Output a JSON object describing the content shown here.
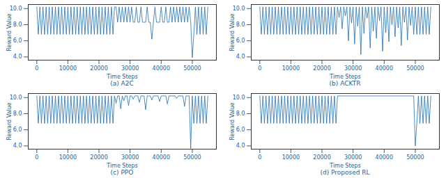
{
  "chart_data": [
    {
      "type": "line",
      "title": "(a) A2C",
      "xlabel": "Time Steps",
      "ylabel": "Reward Value",
      "color": "#1f6fb4",
      "xlim": [
        -2750,
        57750
      ],
      "xticks": [
        0,
        10000,
        20000,
        30000,
        40000,
        50000
      ],
      "ylim": [
        3.6,
        10.5
      ],
      "yticks": [
        4,
        6,
        8,
        10
      ],
      "x": [
        0,
        500,
        1000,
        1500,
        2000,
        2500,
        3000,
        3500,
        4000,
        4500,
        5000,
        5500,
        6000,
        6500,
        7000,
        7500,
        8000,
        8500,
        9000,
        9500,
        10000,
        10500,
        11000,
        11500,
        12000,
        12500,
        13000,
        13500,
        14000,
        14500,
        15000,
        15500,
        16000,
        16500,
        17000,
        17500,
        18000,
        18500,
        19000,
        19500,
        20000,
        20500,
        21000,
        21500,
        22000,
        22500,
        23000,
        23500,
        24000,
        24500,
        25000,
        25500,
        26000,
        26500,
        27000,
        27500,
        28000,
        28500,
        29000,
        29500,
        30000,
        30500,
        31000,
        31500,
        32000,
        32500,
        33000,
        33500,
        34000,
        34500,
        35000,
        35500,
        36000,
        36500,
        37000,
        37500,
        38000,
        38500,
        39000,
        39500,
        40000,
        40500,
        41000,
        41500,
        42000,
        42500,
        43000,
        43500,
        44000,
        44500,
        45000,
        45500,
        46000,
        46500,
        47000,
        47500,
        48000,
        48500,
        49000,
        49500,
        50000,
        50500,
        51000,
        51500,
        52000,
        52500,
        53000,
        53500,
        54000,
        54500,
        55000
      ],
      "values": [
        10.2,
        6.8,
        10.2,
        6.8,
        10.2,
        6.8,
        10.2,
        6.8,
        10.2,
        6.8,
        10.2,
        6.8,
        10.2,
        6.8,
        10.2,
        6.8,
        10.2,
        6.8,
        10.2,
        6.8,
        10.2,
        6.8,
        10.2,
        6.8,
        10.2,
        6.8,
        10.2,
        6.8,
        10.2,
        6.8,
        10.2,
        6.8,
        10.2,
        6.8,
        10.2,
        6.8,
        10.2,
        6.8,
        10.2,
        6.8,
        10.2,
        6.8,
        10.2,
        6.8,
        10.2,
        6.8,
        10.2,
        6.8,
        10.2,
        6.8,
        10.2,
        10.2,
        8.3,
        10.2,
        8.3,
        10.2,
        8.3,
        10.2,
        8.3,
        10.2,
        8.3,
        10.2,
        8.3,
        8.3,
        10.2,
        8.3,
        8.3,
        10.2,
        8.3,
        8.3,
        8.3,
        10.2,
        8.3,
        8.3,
        6.2,
        8.3,
        10.2,
        8.3,
        8.3,
        8.3,
        10.2,
        8.3,
        8.3,
        10.2,
        8.3,
        8.3,
        10.2,
        8.3,
        10.2,
        8.3,
        10.2,
        8.3,
        10.2,
        8.3,
        10.2,
        8.3,
        10.2,
        8.3,
        10.2,
        8.3,
        3.9,
        6.8,
        10.2,
        6.8,
        10.2,
        6.8,
        10.2,
        6.8,
        10.2,
        6.8,
        10.2
      ]
    },
    {
      "type": "line",
      "title": "(b) ACKTR",
      "xlabel": "Time Steps",
      "ylabel": "Reward Value",
      "color": "#1f6fb4",
      "xlim": [
        -2750,
        57750
      ],
      "xticks": [
        0,
        10000,
        20000,
        30000,
        40000,
        50000
      ],
      "ylim": [
        3.6,
        10.5
      ],
      "yticks": [
        4,
        6,
        8,
        10
      ],
      "x": [
        0,
        500,
        1000,
        1500,
        2000,
        2500,
        3000,
        3500,
        4000,
        4500,
        5000,
        5500,
        6000,
        6500,
        7000,
        7500,
        8000,
        8500,
        9000,
        9500,
        10000,
        10500,
        11000,
        11500,
        12000,
        12500,
        13000,
        13500,
        14000,
        14500,
        15000,
        15500,
        16000,
        16500,
        17000,
        17500,
        18000,
        18500,
        19000,
        19500,
        20000,
        20500,
        21000,
        21500,
        22000,
        22500,
        23000,
        23500,
        24000,
        24500,
        25000,
        25500,
        26000,
        26500,
        27000,
        27500,
        28000,
        28500,
        29000,
        29500,
        30000,
        30500,
        31000,
        31500,
        32000,
        32500,
        33000,
        33500,
        34000,
        34500,
        35000,
        35500,
        36000,
        36500,
        37000,
        37500,
        38000,
        38500,
        39000,
        39500,
        40000,
        40500,
        41000,
        41500,
        42000,
        42500,
        43000,
        43500,
        44000,
        44500,
        45000,
        45500,
        46000,
        46500,
        47000,
        47500,
        48000,
        48500,
        49000,
        49500,
        50000,
        50500,
        51000,
        51500,
        52000,
        52500,
        53000,
        53500,
        54000,
        54500,
        55000
      ],
      "values": [
        10.2,
        6.8,
        10.2,
        6.8,
        10.2,
        6.8,
        10.2,
        6.8,
        10.2,
        6.8,
        10.2,
        6.8,
        10.2,
        6.8,
        10.2,
        6.8,
        10.2,
        6.8,
        10.2,
        6.8,
        10.2,
        6.8,
        10.2,
        6.8,
        10.2,
        6.8,
        10.2,
        6.8,
        10.2,
        6.8,
        10.2,
        6.8,
        10.2,
        6.8,
        10.2,
        6.8,
        10.2,
        6.8,
        10.2,
        6.8,
        10.2,
        6.8,
        10.2,
        6.8,
        10.2,
        6.8,
        10.2,
        6.8,
        10.2,
        6.8,
        10.2,
        8.9,
        10.2,
        7.5,
        10.2,
        9.1,
        10.2,
        6.0,
        10.2,
        8.2,
        10.2,
        5.6,
        10.2,
        7.8,
        10.2,
        4.3,
        10.2,
        6.9,
        10.2,
        8.8,
        10.2,
        5.1,
        10.2,
        7.2,
        10.2,
        6.3,
        10.2,
        8.5,
        10.2,
        4.7,
        10.2,
        7.0,
        10.2,
        5.9,
        10.2,
        8.0,
        10.2,
        6.5,
        10.2,
        7.6,
        10.2,
        5.4,
        10.2,
        8.3,
        10.2,
        6.1,
        10.2,
        7.9,
        10.2,
        6.8,
        10.2,
        6.8,
        10.2,
        6.8,
        10.2,
        6.8,
        10.2,
        6.8,
        10.2,
        6.8,
        10.2
      ]
    },
    {
      "type": "line",
      "title": "(c) PPO",
      "xlabel": "Time Steps",
      "ylabel": "Reward Value",
      "color": "#1f6fb4",
      "xlim": [
        -2750,
        57750
      ],
      "xticks": [
        0,
        10000,
        20000,
        30000,
        40000,
        50000
      ],
      "ylim": [
        3.6,
        10.5
      ],
      "yticks": [
        4,
        6,
        8,
        10
      ],
      "x": [
        0,
        500,
        1000,
        1500,
        2000,
        2500,
        3000,
        3500,
        4000,
        4500,
        5000,
        5500,
        6000,
        6500,
        7000,
        7500,
        8000,
        8500,
        9000,
        9500,
        10000,
        10500,
        11000,
        11500,
        12000,
        12500,
        13000,
        13500,
        14000,
        14500,
        15000,
        15500,
        16000,
        16500,
        17000,
        17500,
        18000,
        18500,
        19000,
        19500,
        20000,
        20500,
        21000,
        21500,
        22000,
        22500,
        23000,
        23500,
        24000,
        24500,
        25000,
        25500,
        26000,
        26500,
        27000,
        27500,
        28000,
        28500,
        29000,
        29500,
        30000,
        30500,
        31000,
        31500,
        32000,
        32500,
        33000,
        33500,
        34000,
        34500,
        35000,
        35500,
        36000,
        36500,
        37000,
        37500,
        38000,
        38500,
        39000,
        39500,
        40000,
        40500,
        41000,
        41500,
        42000,
        42500,
        43000,
        43500,
        44000,
        44500,
        45000,
        45500,
        46000,
        46500,
        47000,
        47500,
        48000,
        48500,
        49000,
        49500,
        50000,
        50500,
        51000,
        51500,
        52000,
        52500,
        53000,
        53500,
        54000,
        54500,
        55000
      ],
      "values": [
        10.2,
        6.8,
        10.2,
        6.8,
        10.2,
        6.8,
        10.2,
        6.8,
        10.2,
        6.8,
        10.2,
        6.8,
        10.2,
        6.8,
        10.2,
        6.8,
        10.2,
        6.8,
        10.2,
        6.8,
        10.2,
        6.8,
        10.2,
        6.8,
        10.2,
        6.8,
        10.2,
        6.8,
        10.2,
        6.8,
        10.2,
        6.8,
        10.2,
        6.8,
        10.2,
        6.8,
        10.2,
        6.8,
        10.2,
        6.8,
        10.2,
        6.8,
        10.2,
        6.8,
        10.2,
        6.8,
        10.2,
        6.8,
        10.2,
        6.8,
        10.2,
        9.3,
        10.2,
        10.2,
        8.6,
        10.2,
        9.6,
        10.2,
        10.2,
        9.0,
        10.2,
        10.2,
        9.8,
        10.2,
        10.2,
        10.2,
        9.4,
        10.2,
        10.2,
        10.2,
        8.5,
        10.2,
        10.2,
        10.2,
        9.7,
        10.2,
        10.2,
        10.2,
        10.2,
        9.5,
        10.2,
        10.2,
        10.2,
        10.2,
        9.2,
        10.2,
        10.2,
        10.2,
        10.2,
        10.2,
        9.9,
        10.2,
        10.2,
        10.2,
        10.2,
        8.9,
        10.2,
        10.2,
        10.2,
        3.7,
        10.2,
        6.8,
        10.2,
        6.8,
        10.2,
        6.8,
        10.2,
        6.8,
        10.2,
        6.8,
        10.2
      ]
    },
    {
      "type": "line",
      "title": "(d) Proposed RL",
      "xlabel": "Time Steps",
      "ylabel": "Reward Value",
      "color": "#1f6fb4",
      "xlim": [
        -2750,
        57750
      ],
      "xticks": [
        0,
        10000,
        20000,
        30000,
        40000,
        50000
      ],
      "ylim": [
        3.6,
        10.5
      ],
      "yticks": [
        4,
        6,
        8,
        10
      ],
      "x": [
        0,
        500,
        1000,
        1500,
        2000,
        2500,
        3000,
        3500,
        4000,
        4500,
        5000,
        5500,
        6000,
        6500,
        7000,
        7500,
        8000,
        8500,
        9000,
        9500,
        10000,
        10500,
        11000,
        11500,
        12000,
        12500,
        13000,
        13500,
        14000,
        14500,
        15000,
        15500,
        16000,
        16500,
        17000,
        17500,
        18000,
        18500,
        19000,
        19500,
        20000,
        20500,
        21000,
        21500,
        22000,
        22500,
        23000,
        23500,
        24000,
        24500,
        25000,
        25500,
        26000,
        26500,
        27000,
        27500,
        28000,
        28500,
        29000,
        29500,
        30000,
        30500,
        31000,
        31500,
        32000,
        32500,
        33000,
        33500,
        34000,
        34500,
        35000,
        35500,
        36000,
        36500,
        37000,
        37500,
        38000,
        38500,
        39000,
        39500,
        40000,
        40500,
        41000,
        41500,
        42000,
        42500,
        43000,
        43500,
        44000,
        44500,
        45000,
        45500,
        46000,
        46500,
        47000,
        47500,
        48000,
        48500,
        49000,
        49500,
        50000,
        50500,
        51000,
        51500,
        52000,
        52500,
        53000,
        53500,
        54000,
        54500,
        55000
      ],
      "values": [
        10.2,
        6.8,
        10.2,
        6.8,
        10.2,
        6.8,
        10.2,
        6.8,
        10.2,
        6.8,
        10.2,
        6.8,
        10.2,
        6.8,
        10.2,
        6.8,
        10.2,
        6.8,
        10.2,
        6.8,
        10.2,
        6.8,
        10.2,
        6.8,
        10.2,
        6.8,
        10.2,
        6.8,
        10.2,
        6.8,
        10.2,
        6.8,
        10.2,
        6.8,
        10.2,
        6.8,
        10.2,
        6.8,
        10.2,
        6.8,
        10.2,
        6.8,
        10.2,
        6.8,
        10.2,
        6.8,
        10.2,
        6.8,
        10.2,
        6.8,
        10.2,
        10.2,
        10.2,
        10.2,
        10.2,
        10.2,
        10.2,
        10.2,
        10.2,
        10.2,
        10.2,
        10.2,
        10.2,
        10.2,
        10.2,
        10.2,
        10.2,
        10.2,
        10.2,
        10.2,
        10.2,
        10.2,
        10.2,
        10.2,
        10.2,
        10.2,
        10.2,
        10.2,
        10.2,
        10.2,
        10.2,
        10.2,
        10.2,
        10.2,
        10.2,
        10.2,
        10.2,
        10.2,
        10.2,
        10.2,
        10.2,
        10.2,
        10.2,
        10.2,
        10.2,
        10.2,
        10.2,
        10.2,
        10.2,
        10.2,
        4.0,
        6.8,
        10.2,
        6.8,
        10.2,
        6.8,
        10.2,
        6.8,
        10.2,
        6.8,
        10.2
      ]
    }
  ]
}
